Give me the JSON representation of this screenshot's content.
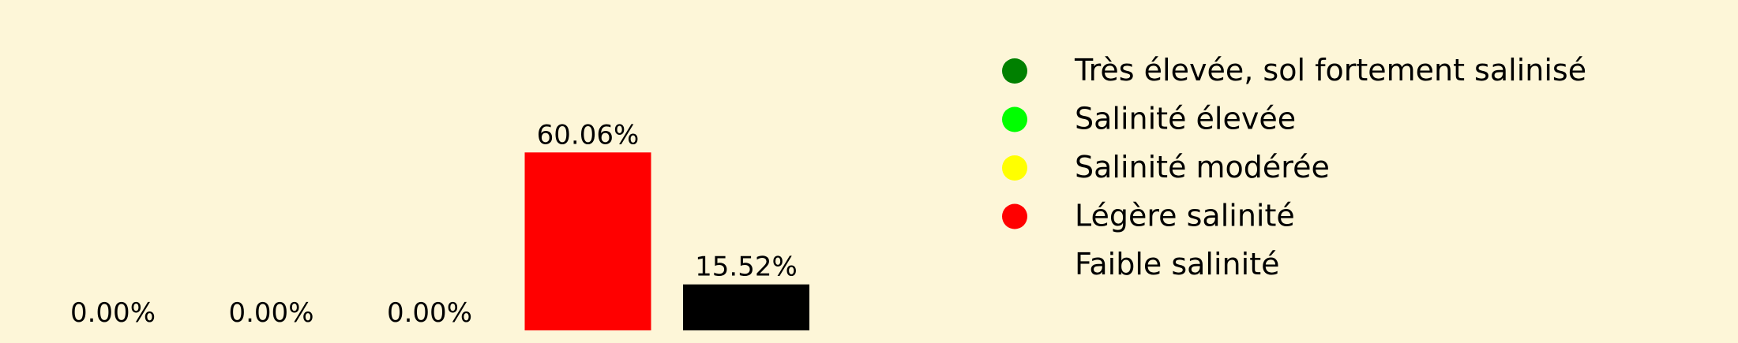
{
  "chart_data": {
    "type": "bar",
    "categories": [
      "Très élevée, sol fortement salinisé",
      "Salinité élevée",
      "Salinité modérée",
      "Légère salinité",
      "Faible salinité"
    ],
    "values": [
      0.0,
      0.0,
      0.0,
      60.06,
      15.52
    ],
    "data_labels": [
      "0.00%",
      "0.00%",
      "0.00%",
      "60.06%",
      "15.52%"
    ],
    "colors": [
      "#008000",
      "#00ff00",
      "#ffff00",
      "#ff0000",
      "#000000"
    ],
    "ylim": [
      0,
      66
    ],
    "grid": false,
    "legend": {
      "placement": "top-right",
      "entries": [
        {
          "label": "Très élevée, sol fortement salinisé",
          "color": "#008000"
        },
        {
          "label": "Salinité élevée",
          "color": "#00ff00"
        },
        {
          "label": "Salinité modérée",
          "color": "#ffff00"
        },
        {
          "label": "Légère salinité",
          "color": "#ff0000"
        },
        {
          "label": "Faible salinité",
          "color": "#000000"
        }
      ]
    },
    "background": "#fdf6d8"
  }
}
